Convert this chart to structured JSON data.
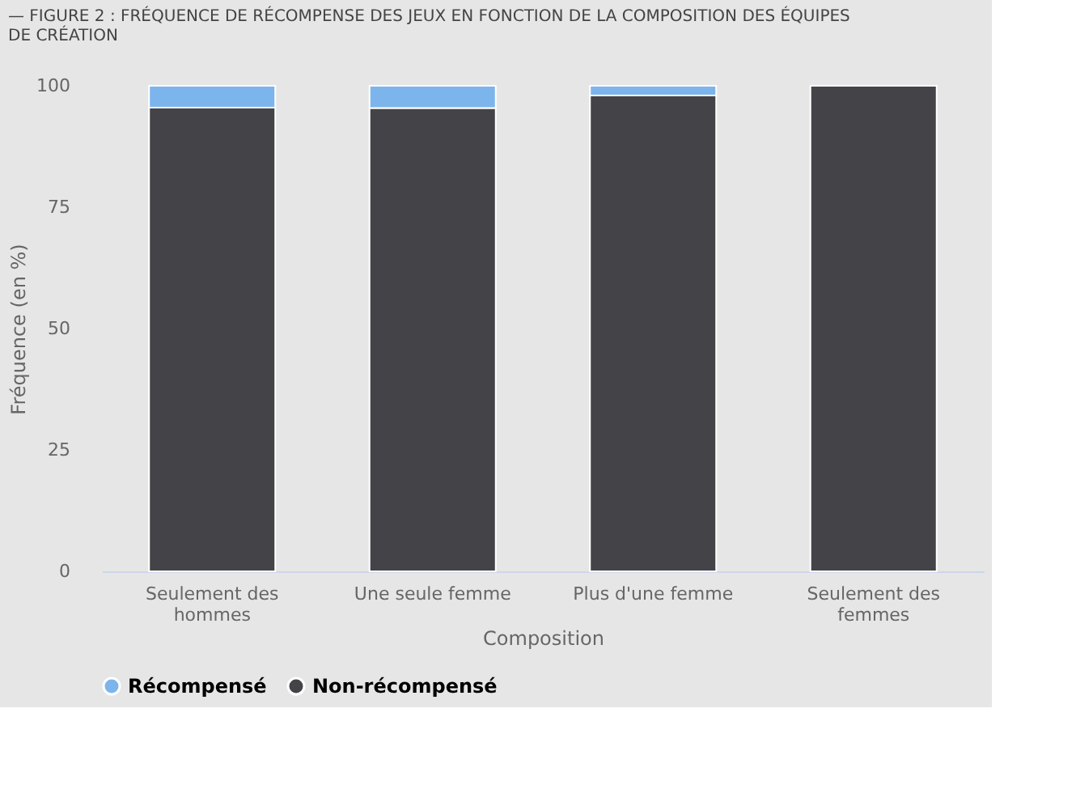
{
  "chart_data": {
    "type": "bar",
    "title": "— FIGURE 2 : FRÉQUENCE DE RÉCOMPENSE DES JEUX EN FONCTION DE LA COMPOSITION DES ÉQUIPES DE CRÉATION",
    "categories": [
      "Seulement des hommes",
      "Une seule femme",
      "Plus d'une femme",
      "Seulement des femmes"
    ],
    "stacked": true,
    "series": [
      {
        "name": "Non-récompensé",
        "color": "#434348",
        "values": [
          95.5,
          95.4,
          98,
          100
        ]
      },
      {
        "name": "Récompensé",
        "color": "#7cb5ec",
        "values": [
          4.5,
          4.6,
          2,
          0
        ]
      }
    ],
    "xlabel": "Composition",
    "ylabel": "Fréquence (en %)",
    "ylim": [
      0,
      100
    ],
    "yticks": [
      0,
      25,
      50,
      75,
      100
    ],
    "grid": false,
    "legend": "bottom"
  }
}
